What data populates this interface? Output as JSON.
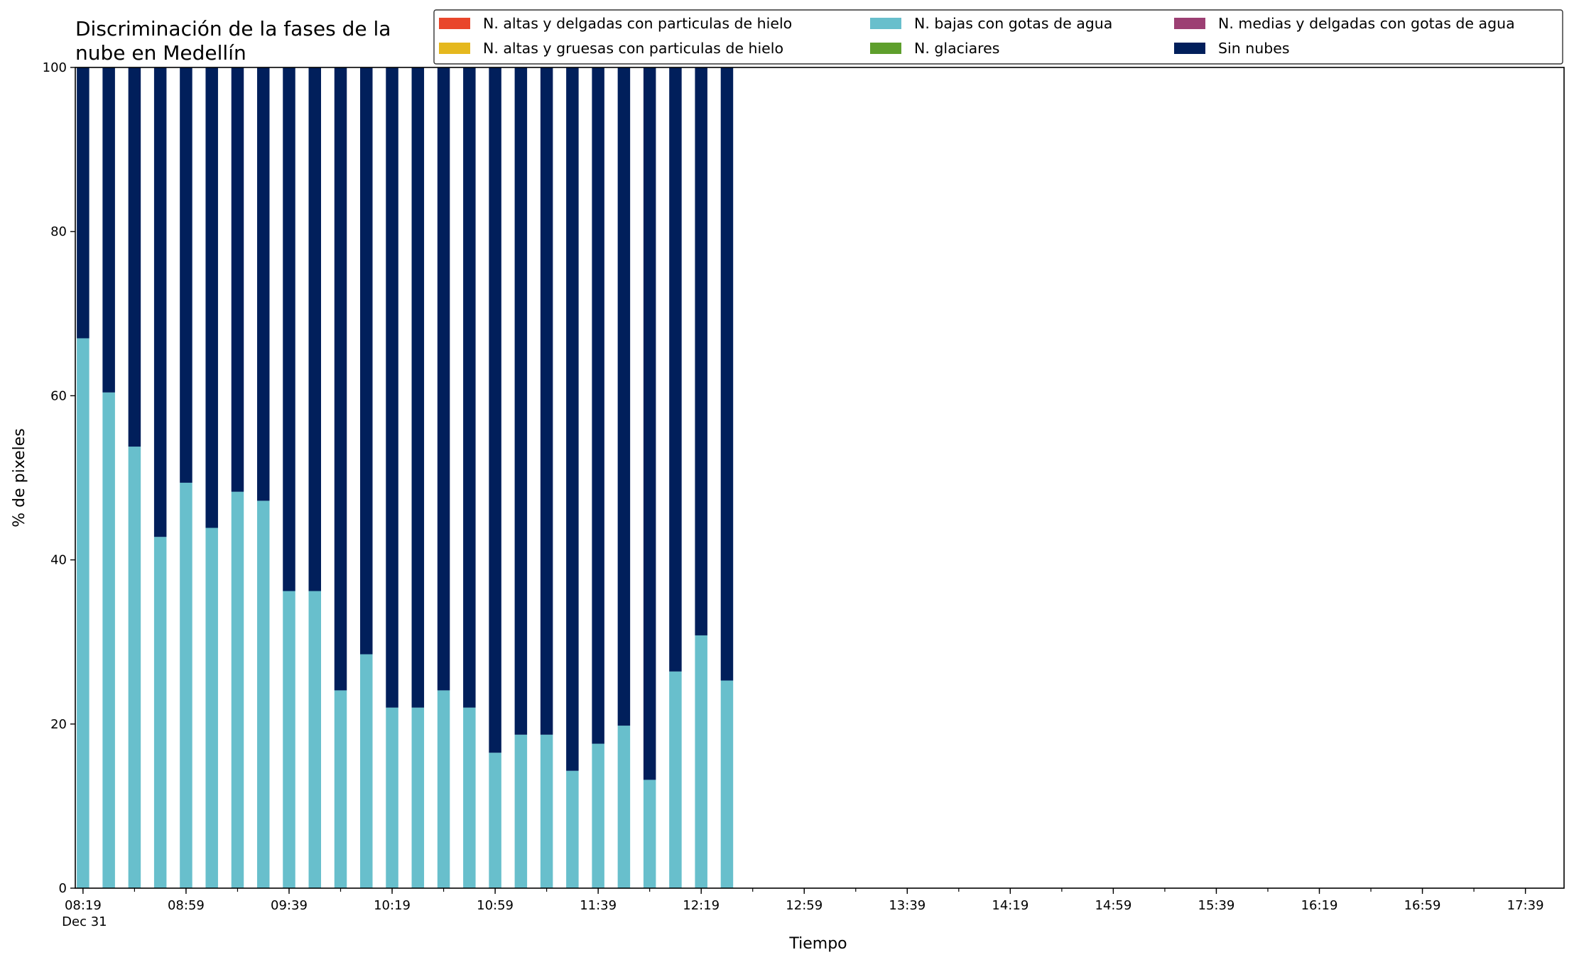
{
  "chart_data": {
    "type": "bar",
    "stacked": true,
    "title_lines": [
      "Discriminación de la fases de la",
      "nube en Medellín"
    ],
    "xlabel": "Tiempo",
    "ylabel": "% de pixeles",
    "ylim": [
      0,
      100
    ],
    "yticks": [
      "0",
      "20",
      "40",
      "60",
      "80",
      "100"
    ],
    "grid": false,
    "legend_position": "top-right",
    "x_ticks": [
      {
        "time": "08:19",
        "sub": "Dec 31"
      },
      {
        "time": "08:59"
      },
      {
        "time": "09:39"
      },
      {
        "time": "10:19"
      },
      {
        "time": "10:59"
      },
      {
        "time": "11:39"
      },
      {
        "time": "12:19"
      },
      {
        "time": "12:59"
      },
      {
        "time": "13:39"
      },
      {
        "time": "14:19"
      },
      {
        "time": "14:59"
      },
      {
        "time": "15:39"
      },
      {
        "time": "16:19"
      },
      {
        "time": "16:59"
      },
      {
        "time": "17:39"
      }
    ],
    "categories": [
      "08:19",
      "08:29",
      "08:39",
      "08:49",
      "08:59",
      "09:09",
      "09:19",
      "09:29",
      "09:39",
      "09:49",
      "09:59",
      "10:09",
      "10:19",
      "10:29",
      "10:39",
      "10:49",
      "10:59",
      "11:09",
      "11:19",
      "11:29",
      "11:39",
      "11:49",
      "11:59",
      "12:09",
      "12:19",
      "12:29"
    ],
    "x_range": [
      "08:16",
      "17:54"
    ],
    "series": [
      {
        "name": "N. altas y delgadas con particulas de hielo",
        "color": "#e9462b",
        "values": [
          0,
          0,
          0,
          0,
          0,
          0,
          0,
          0,
          0,
          0,
          0,
          0,
          0,
          0,
          0,
          0,
          0,
          0,
          0,
          0,
          0,
          0,
          0,
          0,
          0,
          0
        ]
      },
      {
        "name": "N. altas y gruesas con particulas de hielo",
        "color": "#e5b81e",
        "values": [
          0,
          0,
          0,
          0,
          0,
          0,
          0,
          0,
          0,
          0,
          0,
          0,
          0,
          0,
          0,
          0,
          0,
          0,
          0,
          0,
          0,
          0,
          0,
          0,
          0,
          0
        ]
      },
      {
        "name": "N. bajas con gotas de agua",
        "color": "#68bfcc",
        "values": [
          67.0,
          60.4,
          53.8,
          42.8,
          49.4,
          43.9,
          48.3,
          47.2,
          36.2,
          36.2,
          24.1,
          28.5,
          22.0,
          22.0,
          24.1,
          22.0,
          16.5,
          18.7,
          18.7,
          14.3,
          17.6,
          19.8,
          13.2,
          26.4,
          30.8,
          25.3
        ]
      },
      {
        "name": "N. glaciares",
        "color": "#5e9f2c",
        "values": [
          0,
          0,
          0,
          0,
          0,
          0,
          0,
          0,
          0,
          0,
          0,
          0,
          0,
          0,
          0,
          0,
          0,
          0,
          0,
          0,
          0,
          0,
          0,
          0,
          0,
          0
        ]
      },
      {
        "name": "N. medias y delgadas con gotas de agua",
        "color": "#9c3f73",
        "values": [
          0,
          0,
          0,
          0,
          0,
          0,
          0,
          0,
          0,
          0,
          0,
          0,
          0,
          0,
          0,
          0,
          0,
          0,
          0,
          0,
          0,
          0,
          0,
          0,
          0,
          0
        ]
      },
      {
        "name": "Sin nubes",
        "color": "#011f5b",
        "values": [
          33.0,
          39.6,
          46.2,
          57.2,
          50.6,
          56.1,
          51.7,
          52.8,
          63.8,
          63.8,
          75.9,
          71.5,
          78.0,
          78.0,
          75.9,
          78.0,
          83.5,
          81.3,
          81.3,
          85.7,
          82.4,
          80.2,
          86.8,
          73.6,
          69.2,
          74.7
        ]
      }
    ],
    "legend_order": [
      "N. altas y delgadas con particulas de hielo",
      "N. altas y gruesas con particulas de hielo",
      "N. bajas con gotas de agua",
      "N. glaciares",
      "N. medias y delgadas con gotas de agua",
      "Sin nubes"
    ]
  }
}
